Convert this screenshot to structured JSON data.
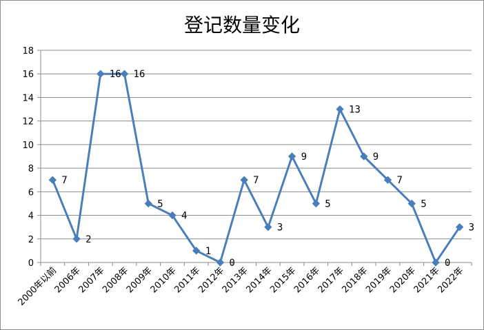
{
  "chart_data": {
    "type": "line",
    "title": "登记数量变化",
    "xlabel": "",
    "ylabel": "",
    "categories": [
      "2000年以前",
      "2006年",
      "2007年",
      "2008年",
      "2009年",
      "2010年",
      "2011年",
      "2012年",
      "2013年",
      "2014年",
      "2015年",
      "2016年",
      "2017年",
      "2018年",
      "2019年",
      "2020年",
      "2021年",
      "2022年"
    ],
    "series": [
      {
        "values": [
          7,
          2,
          16,
          16,
          5,
          4,
          1,
          0,
          7,
          3,
          9,
          5,
          13,
          9,
          7,
          5,
          0,
          3
        ]
      }
    ],
    "ylim": [
      0,
      18
    ],
    "yticks": [
      0,
      2,
      4,
      6,
      8,
      10,
      12,
      14,
      16,
      18
    ],
    "grid": true,
    "legend": "none",
    "data_labels": true,
    "colors": {
      "series": "#4a7ebb",
      "grid": "#8c8c8c"
    }
  }
}
